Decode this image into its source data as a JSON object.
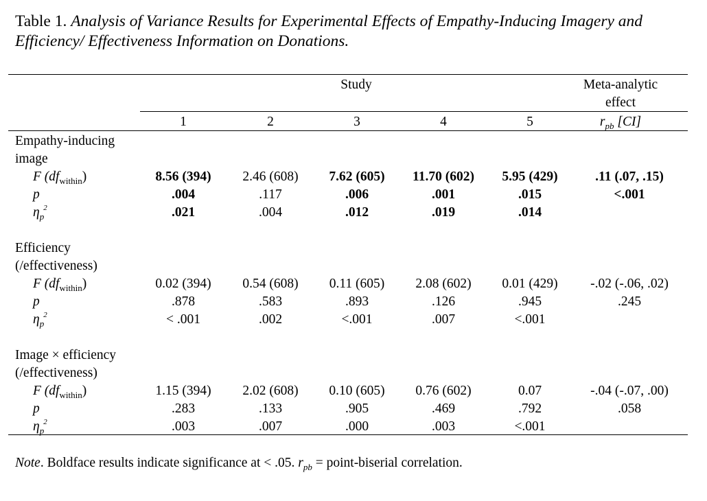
{
  "caption": {
    "label": "Table 1.",
    "title": "Analysis of Variance Results for Experimental Effects of Empathy-Inducing Imagery and Efficiency/ Effectiveness Information on Donations."
  },
  "header": {
    "study": "Study",
    "meta_line1": "Meta-analytic",
    "meta_line2": "effect",
    "columns": [
      "1",
      "2",
      "3",
      "4",
      "5"
    ],
    "meta_stat_symbol": "r",
    "meta_stat_sub": "pb",
    "meta_stat_ci": "[CI]"
  },
  "stat_labels": {
    "f_symbol": "F",
    "df_symbol": "df",
    "df_sub": "within",
    "p": "p",
    "eta": "η",
    "eta_sub": "p",
    "eta_sup": "2"
  },
  "sections": [
    {
      "name_line1": "Empathy-inducing",
      "name_line2": "image",
      "F": [
        "8.56 (394)",
        "2.46 (608)",
        "7.62 (605)",
        "11.70 (602)",
        "5.95 (429)"
      ],
      "p": [
        ".004",
        ".117",
        ".006",
        ".001",
        ".015"
      ],
      "eta": [
        ".021",
        ".004",
        ".012",
        ".019",
        ".014"
      ],
      "meta_F": ".11 (.07, .15)",
      "meta_p": "<.001"
    },
    {
      "name_line1": "Efficiency",
      "name_line2": "(/effectiveness)",
      "F": [
        "0.02 (394)",
        "0.54 (608)",
        "0.11 (605)",
        "2.08 (602)",
        "0.01 (429)"
      ],
      "p": [
        ".878",
        ".583",
        ".893",
        ".126",
        ".945"
      ],
      "eta": [
        "< .001",
        ".002",
        "<.001",
        ".007",
        "<.001"
      ],
      "meta_F": "-.02 (-.06, .02)",
      "meta_p": ".245"
    },
    {
      "name_line1": "Image × efficiency",
      "name_line2": "(/effectiveness)",
      "F": [
        "1.15 (394)",
        "2.02 (608)",
        "0.10 (605)",
        "0.76 (602)",
        "0.07"
      ],
      "p": [
        ".283",
        ".133",
        ".905",
        ".469",
        ".792"
      ],
      "eta": [
        ".003",
        ".007",
        ".000",
        ".003",
        "<.001"
      ],
      "meta_F": "-.04 (-.07, .00)",
      "meta_p": ".058"
    }
  ],
  "note": {
    "label": "Note",
    "text1": ". Boldface results indicate significance at < .05. ",
    "r": "r",
    "r_sub": "pb",
    "text2": " = point-biserial correlation."
  }
}
